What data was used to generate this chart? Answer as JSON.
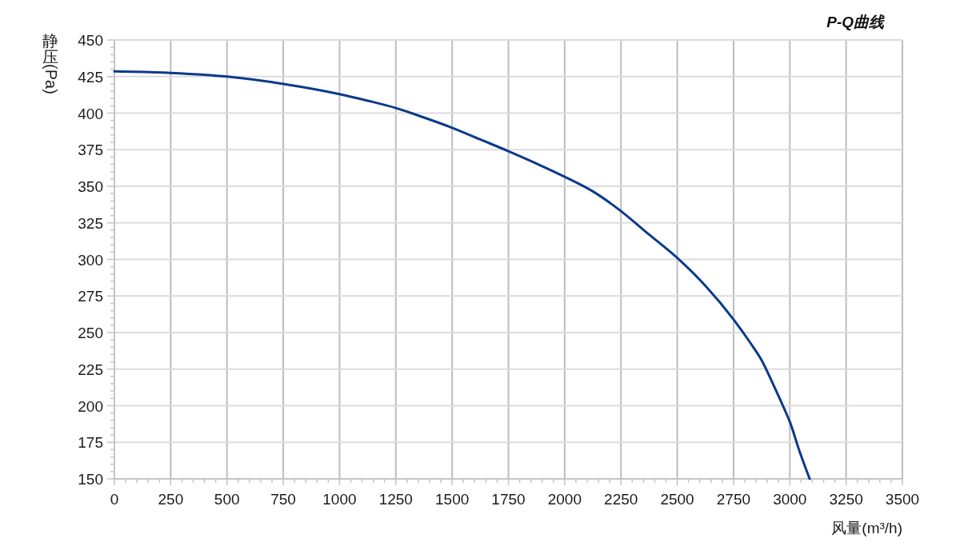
{
  "chart_data": {
    "type": "line",
    "title": "P-Q曲线",
    "xlabel": "风量(m³/h)",
    "ylabel": "静压(Pa)",
    "x": [
      0,
      250,
      500,
      750,
      1000,
      1125,
      1250,
      1375,
      1500,
      1625,
      1750,
      1875,
      2000,
      2125,
      2250,
      2375,
      2500,
      2625,
      2750,
      2820,
      2875,
      2925,
      2975,
      3000,
      3045,
      3088
    ],
    "values": [
      428.5,
      427.5,
      425,
      420,
      413,
      408.5,
      403.5,
      397,
      390,
      382,
      374,
      365.5,
      356.5,
      346.5,
      333,
      317,
      301,
      282,
      259,
      244,
      231,
      215,
      198,
      189,
      168,
      150
    ],
    "color": "#0b3a8c",
    "xlim": [
      0,
      3500
    ],
    "ylim": [
      150,
      450
    ],
    "xticks": [
      0,
      {
        "value": 50,
        "label": null
      },
      {
        "value": 100,
        "label": null
      },
      {
        "value": 150,
        "label": null
      },
      {
        "value": 200,
        "label": null
      },
      250,
      {
        "value": 300,
        "label": null
      },
      {
        "value": 350,
        "label": null
      },
      {
        "value": 400,
        "label": null
      },
      {
        "value": 450,
        "label": null
      },
      500,
      {
        "value": 550,
        "label": null
      },
      {
        "value": 600,
        "label": null
      },
      {
        "value": 650,
        "label": null
      },
      {
        "value": 700,
        "label": null
      },
      750,
      {
        "value": 800,
        "label": null
      },
      {
        "value": 850,
        "label": null
      },
      {
        "value": 900,
        "label": null
      },
      {
        "value": 950,
        "label": null
      },
      1000,
      {
        "value": 1050,
        "label": null
      },
      {
        "value": 1100,
        "label": null
      },
      {
        "value": 1150,
        "label": null
      },
      {
        "value": 1200,
        "label": null
      },
      1250,
      {
        "value": 1300,
        "label": null
      },
      {
        "value": 1350,
        "label": null
      },
      {
        "value": 1400,
        "label": null
      },
      {
        "value": 1450,
        "label": null
      },
      1500,
      {
        "value": 1550,
        "label": null
      },
      {
        "value": 1600,
        "label": null
      },
      {
        "value": 1650,
        "label": null
      },
      {
        "value": 1700,
        "label": null
      },
      1750,
      {
        "value": 1800,
        "label": null
      },
      {
        "value": 1850,
        "label": null
      },
      {
        "value": 1900,
        "label": null
      },
      {
        "value": 1950,
        "label": null
      },
      2000,
      {
        "value": 2050,
        "label": null
      },
      {
        "value": 2100,
        "label": null
      },
      {
        "value": 2150,
        "label": null
      },
      {
        "value": 2200,
        "label": null
      },
      2250,
      {
        "value": 2300,
        "label": null
      },
      {
        "value": 2350,
        "label": null
      },
      {
        "value": 2400,
        "label": null
      },
      {
        "value": 2450,
        "label": null
      },
      2500,
      {
        "value": 2550,
        "label": null
      },
      {
        "value": 2600,
        "label": null
      },
      {
        "value": 2650,
        "label": null
      },
      {
        "value": 2700,
        "label": null
      },
      2750,
      {
        "value": 2800,
        "label": null
      },
      {
        "value": 2850,
        "label": null
      },
      {
        "value": 2900,
        "label": null
      },
      {
        "value": 2950,
        "label": null
      },
      3000,
      {
        "value": 3050,
        "label": null
      },
      {
        "value": 3100,
        "label": null
      },
      {
        "value": 3150,
        "label": null
      },
      {
        "value": 3200,
        "label": null
      },
      3250,
      {
        "value": 3300,
        "label": null
      },
      {
        "value": 3350,
        "label": null
      },
      {
        "value": 3400,
        "label": null
      },
      {
        "value": 3450,
        "label": null
      },
      3500
    ],
    "yticks": [
      150,
      {
        "value": 155,
        "label": null
      },
      {
        "value": 160,
        "label": null
      },
      {
        "value": 165,
        "label": null
      },
      {
        "value": 170,
        "label": null
      },
      175,
      {
        "value": 180,
        "label": null
      },
      {
        "value": 185,
        "label": null
      },
      {
        "value": 190,
        "label": null
      },
      {
        "value": 195,
        "label": null
      },
      200,
      {
        "value": 205,
        "label": null
      },
      {
        "value": 210,
        "label": null
      },
      {
        "value": 215,
        "label": null
      },
      {
        "value": 220,
        "label": null
      },
      225,
      {
        "value": 230,
        "label": null
      },
      {
        "value": 235,
        "label": null
      },
      {
        "value": 240,
        "label": null
      },
      {
        "value": 245,
        "label": null
      },
      250,
      {
        "value": 255,
        "label": null
      },
      {
        "value": 260,
        "label": null
      },
      {
        "value": 265,
        "label": null
      },
      {
        "value": 270,
        "label": null
      },
      275,
      {
        "value": 280,
        "label": null
      },
      {
        "value": 285,
        "label": null
      },
      {
        "value": 290,
        "label": null
      },
      {
        "value": 295,
        "label": null
      },
      300,
      {
        "value": 305,
        "label": null
      },
      {
        "value": 310,
        "label": null
      },
      {
        "value": 315,
        "label": null
      },
      {
        "value": 320,
        "label": null
      },
      325,
      {
        "value": 330,
        "label": null
      },
      {
        "value": 335,
        "label": null
      },
      {
        "value": 340,
        "label": null
      },
      {
        "value": 345,
        "label": null
      },
      350,
      {
        "value": 355,
        "label": null
      },
      {
        "value": 360,
        "label": null
      },
      {
        "value": 365,
        "label": null
      },
      {
        "value": 370,
        "label": null
      },
      375,
      {
        "value": 380,
        "label": null
      },
      {
        "value": 385,
        "label": null
      },
      {
        "value": 390,
        "label": null
      },
      {
        "value": 395,
        "label": null
      },
      400,
      {
        "value": 405,
        "label": null
      },
      {
        "value": 410,
        "label": null
      },
      {
        "value": 415,
        "label": null
      },
      {
        "value": 420,
        "label": null
      },
      425,
      {
        "value": 430,
        "label": null
      },
      {
        "value": 435,
        "label": null
      },
      {
        "value": 440,
        "label": null
      },
      {
        "value": 445,
        "label": null
      },
      450
    ],
    "grid": true
  }
}
